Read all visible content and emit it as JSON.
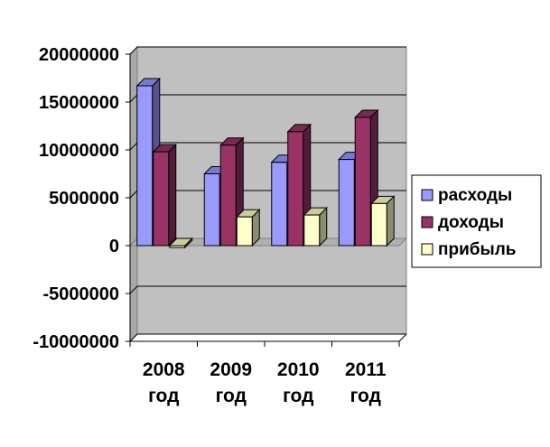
{
  "chart_data": {
    "type": "bar",
    "style": "3d-clustered-column",
    "categories": [
      "2008 год",
      "2009 год",
      "2010 год",
      "2011 год"
    ],
    "series": [
      {
        "name": "расходы",
        "color": "#9999FF",
        "values": [
          16700000,
          7500000,
          8700000,
          9000000
        ]
      },
      {
        "name": "доходы",
        "color": "#993366",
        "values": [
          9800000,
          10500000,
          11900000,
          13400000
        ]
      },
      {
        "name": "прибыль",
        "color": "#FFFFCC",
        "values": [
          -200000,
          3000000,
          3200000,
          4400000
        ]
      }
    ],
    "ylim": [
      -10000000,
      20000000
    ],
    "yticks": [
      20000000,
      15000000,
      10000000,
      5000000,
      0,
      -5000000,
      -10000000
    ],
    "ytick_labels": [
      "20000000",
      "15000000",
      "10000000",
      "5000000",
      "0",
      "-5000000",
      "-10000000"
    ],
    "plot_background": "#C0C0C0",
    "grid": true,
    "legend_position": "right"
  }
}
